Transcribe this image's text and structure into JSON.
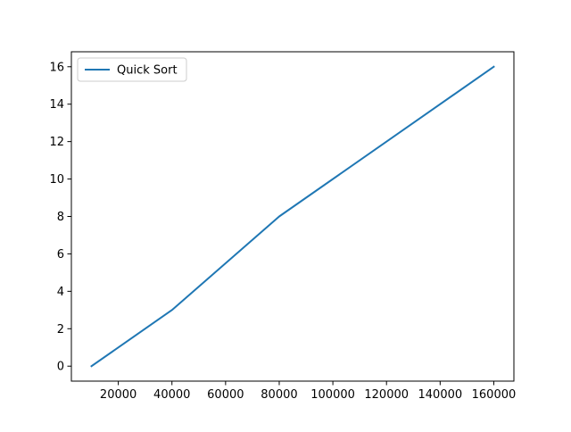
{
  "chart_data": {
    "type": "line",
    "title": "",
    "xlabel": "",
    "ylabel": "",
    "xlim": [
      2500,
      167500
    ],
    "ylim": [
      -0.8,
      16.8
    ],
    "xticks": [
      20000,
      40000,
      60000,
      80000,
      100000,
      120000,
      140000,
      160000
    ],
    "yticks": [
      0,
      2,
      4,
      6,
      8,
      10,
      12,
      14,
      16
    ],
    "grid": false,
    "legend_position": "upper left",
    "series": [
      {
        "name": "Quick Sort",
        "color": "#1f77b4",
        "x": [
          10000,
          40000,
          80000,
          160000
        ],
        "y": [
          0,
          3,
          8,
          16
        ]
      }
    ]
  }
}
